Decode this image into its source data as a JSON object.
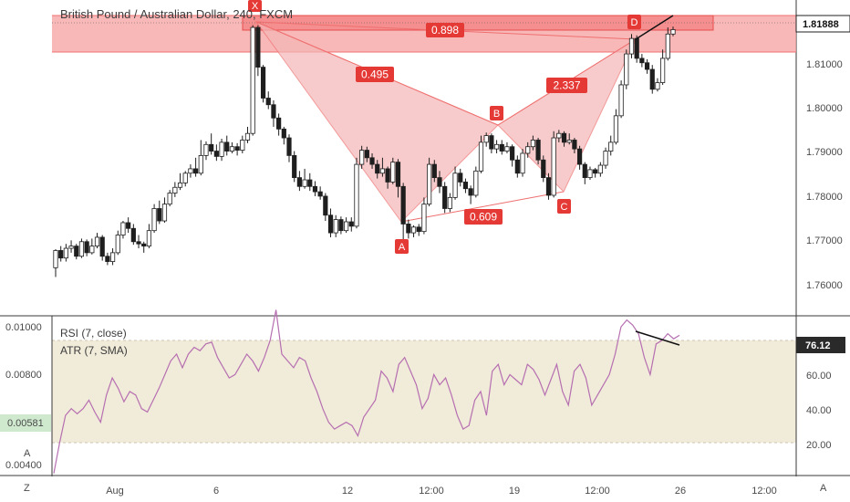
{
  "chart_data": {
    "type": "candlestick",
    "title": "British Pound / Australian Dollar, 240, FXCM",
    "price_axis": {
      "ticks": [
        "1.81000",
        "1.80000",
        "1.79000",
        "1.78000",
        "1.77000",
        "1.76000"
      ],
      "current": "1.81888"
    },
    "time_axis": {
      "ticks": [
        "Aug",
        "6",
        "12",
        "12:00",
        "19",
        "12:00",
        "26",
        "12:00"
      ]
    },
    "pattern": {
      "points": [
        {
          "label": "X",
          "price": 1.8195
        },
        {
          "label": "A",
          "price": 1.771
        },
        {
          "label": "B",
          "price": 1.7957
        },
        {
          "label": "C",
          "price": 1.7808
        },
        {
          "label": "D",
          "price": 1.8162
        }
      ],
      "ratios": [
        "0.495",
        "0.609",
        "2.337",
        "0.898"
      ]
    },
    "indicators": {
      "rsi": {
        "label": "RSI (7, close)",
        "ticks": [
          "60.00",
          "40.00",
          "20.00"
        ],
        "current": "76.12",
        "bands": [
          20,
          80
        ],
        "values": [
          2,
          20,
          36,
          40,
          37,
          40,
          45,
          38,
          32,
          48,
          58,
          52,
          44,
          50,
          48,
          40,
          38,
          45,
          52,
          60,
          68,
          72,
          64,
          72,
          76,
          74,
          78,
          79,
          70,
          64,
          58,
          60,
          66,
          72,
          68,
          62,
          70,
          80,
          98,
          72,
          68,
          64,
          70,
          68,
          58,
          50,
          40,
          32,
          28,
          30,
          32,
          30,
          24,
          35,
          40,
          45,
          62,
          58,
          50,
          66,
          70,
          62,
          54,
          40,
          46,
          60,
          54,
          58,
          48,
          36,
          28,
          30,
          45,
          50,
          36,
          62,
          66,
          54,
          60,
          57,
          54,
          66,
          63,
          57,
          48,
          57,
          66,
          50,
          42,
          62,
          66,
          58,
          42,
          48,
          54,
          60,
          72,
          88,
          92,
          89,
          84,
          70,
          60,
          78,
          80,
          84,
          81,
          83
        ]
      },
      "atr": {
        "label": "ATR (7, SMA)",
        "ticks": [
          "0.01000",
          "0.00800",
          "0.00400"
        ],
        "current": "0.00581"
      }
    },
    "left_axis_markers": [
      "Z",
      "A"
    ],
    "right_axis_markers": [
      "A"
    ]
  },
  "colors": {
    "zone": "#f6a0a0",
    "pattern_fill": "#f4b6b6",
    "pattern_line": "#ef6f6f",
    "label_red": "#e53935",
    "rsi_line": "#b66fb0",
    "rsi_band": "#eee7d4",
    "candle": "#1e1e1e"
  },
  "candles": [
    [
      1.7646,
      1.7685,
      1.7625,
      1.7688
    ],
    [
      1.7685,
      1.7668,
      1.766,
      1.7695
    ],
    [
      1.7668,
      1.769,
      1.766,
      1.77
    ],
    [
      1.769,
      1.7695,
      1.768,
      1.7708
    ],
    [
      1.7695,
      1.7672,
      1.7665,
      1.77
    ],
    [
      1.7672,
      1.7705,
      1.7668,
      1.7712
    ],
    [
      1.7705,
      1.768,
      1.7672,
      1.771
    ],
    [
      1.768,
      1.7695,
      1.7676,
      1.7712
    ],
    [
      1.7695,
      1.7715,
      1.769,
      1.7725
    ],
    [
      1.7715,
      1.7672,
      1.7662,
      1.772
    ],
    [
      1.7672,
      1.766,
      1.7652,
      1.768
    ],
    [
      1.766,
      1.768,
      1.7652,
      1.769
    ],
    [
      1.768,
      1.772,
      1.7675,
      1.773
    ],
    [
      1.772,
      1.7748,
      1.7712,
      1.7752
    ],
    [
      1.7748,
      1.7735,
      1.7725,
      1.776
    ],
    [
      1.7735,
      1.7705,
      1.7698,
      1.7745
    ],
    [
      1.7705,
      1.77,
      1.769,
      1.772
    ],
    [
      1.77,
      1.7695,
      1.768,
      1.7705
    ],
    [
      1.7695,
      1.773,
      1.769,
      1.7745
    ],
    [
      1.773,
      1.778,
      1.7725,
      1.779
    ],
    [
      1.778,
      1.7752,
      1.7745,
      1.7798
    ],
    [
      1.7752,
      1.779,
      1.7748,
      1.7805
    ],
    [
      1.779,
      1.7815,
      1.7785,
      1.7822
    ],
    [
      1.7815,
      1.7828,
      1.7806,
      1.784
    ],
    [
      1.7828,
      1.7838,
      1.7822,
      1.786
    ],
    [
      1.7838,
      1.786,
      1.783,
      1.7865
    ],
    [
      1.786,
      1.787,
      1.785,
      1.788
    ],
    [
      1.787,
      1.786,
      1.7852,
      1.7895
    ],
    [
      1.786,
      1.79,
      1.7855,
      1.7935
    ],
    [
      1.79,
      1.7925,
      1.789,
      1.7932
    ],
    [
      1.7925,
      1.791,
      1.7902,
      1.795
    ],
    [
      1.791,
      1.7898,
      1.7888,
      1.7925
    ],
    [
      1.7898,
      1.793,
      1.7888,
      1.7938
    ],
    [
      1.793,
      1.791,
      1.79,
      1.7945
    ],
    [
      1.791,
      1.792,
      1.7905,
      1.793
    ],
    [
      1.792,
      1.7912,
      1.79,
      1.7928
    ],
    [
      1.7912,
      1.7935,
      1.7905,
      1.7945
    ],
    [
      1.7935,
      1.795,
      1.7928,
      1.7965
    ],
    [
      1.795,
      1.819,
      1.7945,
      1.8195
    ],
    [
      1.819,
      1.81,
      1.808,
      1.8195
    ],
    [
      1.81,
      1.803,
      1.802,
      1.8105
    ],
    [
      1.803,
      1.8015,
      1.8005,
      1.8045
    ],
    [
      1.8015,
      1.7985,
      1.7965,
      1.8025
    ],
    [
      1.7985,
      1.796,
      1.7945,
      1.7995
    ],
    [
      1.796,
      1.794,
      1.7925,
      1.7965
    ],
    [
      1.794,
      1.79,
      1.7885,
      1.7948
    ],
    [
      1.79,
      1.785,
      1.784,
      1.791
    ],
    [
      1.785,
      1.783,
      1.782,
      1.7865
    ],
    [
      1.783,
      1.7845,
      1.7825,
      1.787
    ],
    [
      1.7845,
      1.783,
      1.782,
      1.786
    ],
    [
      1.783,
      1.7818,
      1.7808,
      1.7842
    ],
    [
      1.7818,
      1.7808,
      1.78,
      1.783
    ],
    [
      1.7808,
      1.7765,
      1.7752,
      1.7815
    ],
    [
      1.7765,
      1.7725,
      1.7715,
      1.778
    ],
    [
      1.7725,
      1.7755,
      1.7715,
      1.7765
    ],
    [
      1.7755,
      1.773,
      1.7722,
      1.7762
    ],
    [
      1.773,
      1.775,
      1.7725,
      1.776
    ],
    [
      1.775,
      1.774,
      1.7728,
      1.776
    ],
    [
      1.774,
      1.788,
      1.7735,
      1.7895
    ],
    [
      1.788,
      1.7912,
      1.787,
      1.7922
    ],
    [
      1.7912,
      1.7895,
      1.7885,
      1.792
    ],
    [
      1.7895,
      1.788,
      1.787,
      1.7905
    ],
    [
      1.788,
      1.786,
      1.7848,
      1.789
    ],
    [
      1.786,
      1.787,
      1.7852,
      1.7895
    ],
    [
      1.787,
      1.784,
      1.7825,
      1.7875
    ],
    [
      1.784,
      1.7885,
      1.7835,
      1.7895
    ],
    [
      1.7885,
      1.783,
      1.7805,
      1.7892
    ],
    [
      1.783,
      1.7745,
      1.771,
      1.7838
    ],
    [
      1.7745,
      1.7725,
      1.7712,
      1.7755
    ],
    [
      1.7725,
      1.7738,
      1.7715,
      1.7742
    ],
    [
      1.7738,
      1.7728,
      1.7718,
      1.7745
    ],
    [
      1.7728,
      1.779,
      1.7722,
      1.7805
    ],
    [
      1.779,
      1.788,
      1.7785,
      1.7895
    ],
    [
      1.788,
      1.785,
      1.784,
      1.789
    ],
    [
      1.785,
      1.783,
      1.7815,
      1.7865
    ],
    [
      1.783,
      1.778,
      1.777,
      1.784
    ],
    [
      1.778,
      1.7805,
      1.7772,
      1.7815
    ],
    [
      1.7805,
      1.786,
      1.78,
      1.7875
    ],
    [
      1.786,
      1.784,
      1.783,
      1.787
    ],
    [
      1.784,
      1.7825,
      1.7815,
      1.7848
    ],
    [
      1.7825,
      1.781,
      1.779,
      1.7832
    ],
    [
      1.781,
      1.7865,
      1.7805,
      1.7875
    ],
    [
      1.7865,
      1.793,
      1.786,
      1.7945
    ],
    [
      1.793,
      1.7945,
      1.792,
      1.7952
    ],
    [
      1.7945,
      1.7915,
      1.7905,
      1.795
    ],
    [
      1.7915,
      1.7925,
      1.7905,
      1.7935
    ],
    [
      1.7925,
      1.791,
      1.7902,
      1.7935
    ],
    [
      1.791,
      1.792,
      1.7905,
      1.793
    ],
    [
      1.792,
      1.789,
      1.7875,
      1.7925
    ],
    [
      1.789,
      1.786,
      1.785,
      1.79
    ],
    [
      1.786,
      1.7905,
      1.7852,
      1.7915
    ],
    [
      1.7905,
      1.792,
      1.7895,
      1.793
    ],
    [
      1.792,
      1.7935,
      1.7912,
      1.7945
    ],
    [
      1.7935,
      1.789,
      1.788,
      1.794
    ],
    [
      1.789,
      1.785,
      1.784,
      1.79
    ],
    [
      1.785,
      1.781,
      1.78,
      1.786
    ],
    [
      1.781,
      1.794,
      1.7805,
      1.7955
    ],
    [
      1.794,
      1.795,
      1.793,
      1.7958
    ],
    [
      1.795,
      1.793,
      1.792,
      1.7955
    ],
    [
      1.793,
      1.7935,
      1.7925,
      1.795
    ],
    [
      1.7935,
      1.7915,
      1.7905,
      1.794
    ],
    [
      1.7915,
      1.788,
      1.7868,
      1.7922
    ],
    [
      1.788,
      1.785,
      1.7835,
      1.7885
    ],
    [
      1.785,
      1.7868,
      1.7845,
      1.7875
    ],
    [
      1.7868,
      1.786,
      1.785,
      1.7872
    ],
    [
      1.786,
      1.7878,
      1.7852,
      1.7885
    ],
    [
      1.7878,
      1.791,
      1.787,
      1.7918
    ],
    [
      1.791,
      1.793,
      1.79,
      1.7945
    ],
    [
      1.793,
      1.799,
      1.7925,
      1.8005
    ],
    [
      1.799,
      1.806,
      1.7985,
      1.807
    ],
    [
      1.806,
      1.813,
      1.805,
      1.814
    ],
    [
      1.813,
      1.8165,
      1.812,
      1.8175
    ],
    [
      1.8165,
      1.812,
      1.811,
      1.8172
    ],
    [
      1.812,
      1.811,
      1.81,
      1.813
    ],
    [
      1.811,
      1.8095,
      1.8085,
      1.8118
    ],
    [
      1.8095,
      1.805,
      1.804,
      1.8105
    ],
    [
      1.805,
      1.8065,
      1.8045,
      1.8075
    ],
    [
      1.8065,
      1.812,
      1.806,
      1.814
    ],
    [
      1.812,
      1.8175,
      1.8115,
      1.819
    ],
    [
      1.8175,
      1.8185,
      1.817,
      1.8192
    ]
  ]
}
